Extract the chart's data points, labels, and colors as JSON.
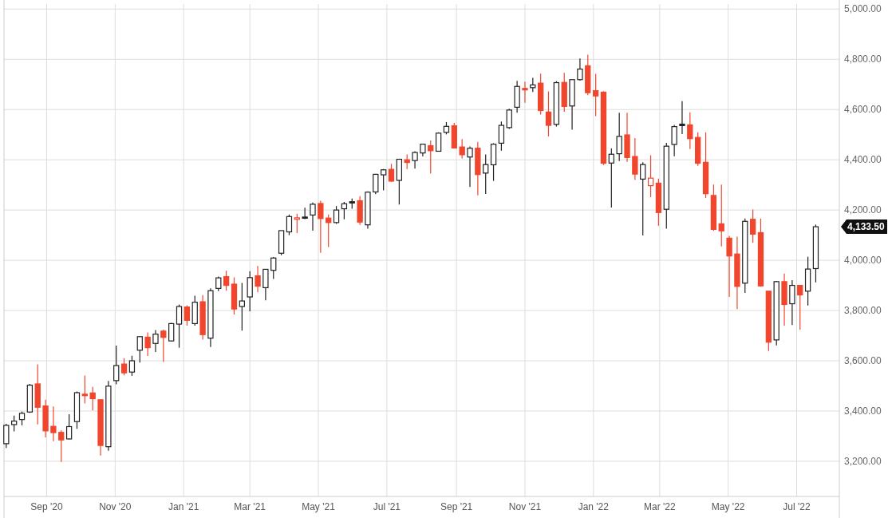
{
  "chart_data": {
    "type": "candlestick",
    "x": [
      "2020-07-27",
      "2020-08-03",
      "2020-08-10",
      "2020-08-17",
      "2020-08-24",
      "2020-08-31",
      "2020-09-07",
      "2020-09-14",
      "2020-09-21",
      "2020-09-28",
      "2020-10-05",
      "2020-10-12",
      "2020-10-19",
      "2020-10-26",
      "2020-11-02",
      "2020-11-09",
      "2020-11-16",
      "2020-11-23",
      "2020-11-30",
      "2020-12-07",
      "2020-12-14",
      "2020-12-21",
      "2020-12-28",
      "2021-01-04",
      "2021-01-11",
      "2021-01-18",
      "2021-01-25",
      "2021-02-01",
      "2021-02-08",
      "2021-02-15",
      "2021-02-22",
      "2021-03-01",
      "2021-03-08",
      "2021-03-15",
      "2021-03-22",
      "2021-03-29",
      "2021-04-05",
      "2021-04-12",
      "2021-04-19",
      "2021-04-26",
      "2021-05-03",
      "2021-05-10",
      "2021-05-17",
      "2021-05-24",
      "2021-05-31",
      "2021-06-07",
      "2021-06-14",
      "2021-06-21",
      "2021-06-28",
      "2021-07-05",
      "2021-07-12",
      "2021-07-19",
      "2021-07-26",
      "2021-08-02",
      "2021-08-09",
      "2021-08-16",
      "2021-08-23",
      "2021-08-30",
      "2021-09-06",
      "2021-09-13",
      "2021-09-20",
      "2021-09-27",
      "2021-10-04",
      "2021-10-11",
      "2021-10-18",
      "2021-10-25",
      "2021-11-01",
      "2021-11-08",
      "2021-11-15",
      "2021-11-22",
      "2021-11-29",
      "2021-12-06",
      "2021-12-13",
      "2021-12-20",
      "2021-12-27",
      "2022-01-03",
      "2022-01-10",
      "2022-01-17",
      "2022-01-24",
      "2022-01-31",
      "2022-02-07",
      "2022-02-14",
      "2022-02-21",
      "2022-02-28",
      "2022-03-07",
      "2022-03-14",
      "2022-03-21",
      "2022-03-28",
      "2022-04-04",
      "2022-04-11",
      "2022-04-18",
      "2022-04-25",
      "2022-05-02",
      "2022-05-09",
      "2022-05-16",
      "2022-05-23",
      "2022-05-30",
      "2022-06-06",
      "2022-06-13",
      "2022-06-20",
      "2022-06-27",
      "2022-07-04",
      "2022-07-11",
      "2022-07-18"
    ],
    "ohlc": [
      [
        3270,
        3349,
        3253,
        3343
      ],
      [
        3346,
        3382,
        3319,
        3360
      ],
      [
        3366,
        3398,
        3343,
        3391
      ],
      [
        3396,
        3508,
        3393,
        3503
      ],
      [
        3508,
        3586,
        3347,
        3415
      ],
      [
        3420,
        3445,
        3295,
        3321
      ],
      [
        3339,
        3418,
        3280,
        3314
      ],
      [
        3315,
        3323,
        3197,
        3285
      ],
      [
        3289,
        3387,
        3287,
        3338
      ],
      [
        3358,
        3478,
        3329,
        3473
      ],
      [
        3467,
        3541,
        3430,
        3461
      ],
      [
        3472,
        3496,
        3402,
        3449
      ],
      [
        3445,
        3445,
        3223,
        3263
      ],
      [
        3258,
        3520,
        3242,
        3499
      ],
      [
        3521,
        3660,
        3506,
        3581
      ],
      [
        3587,
        3610,
        3542,
        3552
      ],
      [
        3555,
        3620,
        3540,
        3600
      ],
      [
        3642,
        3696,
        3593,
        3696
      ],
      [
        3694,
        3713,
        3619,
        3652
      ],
      [
        3669,
        3722,
        3635,
        3706
      ],
      [
        3718,
        3724,
        3595,
        3693
      ],
      [
        3679,
        3751,
        3676,
        3748
      ],
      [
        3746,
        3824,
        3652,
        3816
      ],
      [
        3814,
        3821,
        3740,
        3761
      ],
      [
        3748,
        3859,
        3740,
        3833
      ],
      [
        3835,
        3861,
        3684,
        3704
      ],
      [
        3690,
        3888,
        3655,
        3879
      ],
      [
        3888,
        3935,
        3877,
        3930
      ],
      [
        3935,
        3958,
        3879,
        3900
      ],
      [
        3905,
        3932,
        3784,
        3806
      ],
      [
        3816,
        3910,
        3720,
        3838
      ],
      [
        3854,
        3957,
        3797,
        3931
      ],
      [
        3938,
        3977,
        3873,
        3897
      ],
      [
        3891,
        3964,
        3841,
        3964
      ],
      [
        3960,
        4013,
        3926,
        4009
      ],
      [
        4028,
        4118,
        4020,
        4118
      ],
      [
        4113,
        4182,
        4100,
        4174
      ],
      [
        4163,
        4185,
        4108,
        4169
      ],
      [
        4172,
        4209,
        4164,
        4168
      ],
      [
        4180,
        4230,
        4118,
        4223
      ],
      [
        4226,
        4237,
        4030,
        4166
      ],
      [
        4168,
        4182,
        4053,
        4150
      ],
      [
        4150,
        4216,
        4145,
        4200
      ],
      [
        4205,
        4232,
        4163,
        4225
      ],
      [
        4233,
        4246,
        4205,
        4228
      ],
      [
        4237,
        4255,
        4141,
        4152
      ],
      [
        4141,
        4274,
        4126,
        4271
      ],
      [
        4272,
        4344,
        4263,
        4342
      ],
      [
        4340,
        4363,
        4278,
        4360
      ],
      [
        4362,
        4384,
        4312,
        4315
      ],
      [
        4318,
        4402,
        4222,
        4402
      ],
      [
        4400,
        4421,
        4363,
        4389
      ],
      [
        4397,
        4434,
        4365,
        4429
      ],
      [
        4427,
        4464,
        4413,
        4462
      ],
      [
        4456,
        4477,
        4346,
        4436
      ],
      [
        4434,
        4509,
        4432,
        4506
      ],
      [
        4509,
        4550,
        4501,
        4533
      ],
      [
        4535,
        4547,
        4447,
        4447
      ],
      [
        4451,
        4482,
        4405,
        4420
      ],
      [
        4411,
        4453,
        4292,
        4446
      ],
      [
        4446,
        4471,
        4258,
        4341
      ],
      [
        4347,
        4421,
        4264,
        4381
      ],
      [
        4380,
        4466,
        4316,
        4462
      ],
      [
        4466,
        4552,
        4436,
        4537
      ],
      [
        4528,
        4603,
        4523,
        4598
      ],
      [
        4609,
        4714,
        4587,
        4692
      ],
      [
        4684,
        4710,
        4627,
        4678
      ],
      [
        4687,
        4726,
        4670,
        4698
      ],
      [
        4705,
        4743,
        4580,
        4596
      ],
      [
        4590,
        4672,
        4493,
        4537
      ],
      [
        4541,
        4713,
        4532,
        4707
      ],
      [
        4708,
        4746,
        4591,
        4612
      ],
      [
        4614,
        4719,
        4520,
        4719
      ],
      [
        4719,
        4803,
        4715,
        4761
      ],
      [
        4774,
        4818,
        4657,
        4667
      ],
      [
        4675,
        4742,
        4574,
        4654
      ],
      [
        4669,
        4673,
        4379,
        4386
      ],
      [
        4387,
        4445,
        4210,
        4422
      ],
      [
        4424,
        4587,
        4395,
        4493
      ],
      [
        4499,
        4587,
        4392,
        4409
      ],
      [
        4413,
        4486,
        4320,
        4343
      ],
      [
        4323,
        4390,
        4099,
        4381
      ],
      [
        4297,
        4418,
        4251,
        4327
      ],
      [
        4307,
        4325,
        4137,
        4190
      ],
      [
        4203,
        4467,
        4126,
        4454
      ],
      [
        4461,
        4539,
        4414,
        4532
      ],
      [
        4542,
        4633,
        4502,
        4536
      ],
      [
        4539,
        4589,
        4443,
        4484
      ],
      [
        4489,
        4509,
        4376,
        4386
      ],
      [
        4390,
        4509,
        4248,
        4265
      ],
      [
        4258,
        4301,
        4117,
        4123
      ],
      [
        4145,
        4301,
        4055,
        4117
      ],
      [
        4088,
        4097,
        3854,
        4017
      ],
      [
        4025,
        4094,
        3806,
        3896
      ],
      [
        3909,
        4166,
        3870,
        4155
      ],
      [
        4163,
        4202,
        4069,
        4104
      ],
      [
        4110,
        4166,
        3895,
        3898
      ],
      [
        3877,
        3877,
        3639,
        3674
      ],
      [
        3683,
        3918,
        3661,
        3915
      ],
      [
        3915,
        3947,
        3740,
        3824
      ],
      [
        3827,
        3921,
        3742,
        3900
      ],
      [
        3900,
        3900,
        3724,
        3862
      ],
      [
        3877,
        4014,
        3820,
        3965
      ],
      [
        3967,
        4142,
        3912,
        4133.5
      ]
    ],
    "colors": [
      "#222222",
      "#222222",
      "#222222",
      "#222222",
      "#f0462d",
      "#f0462d",
      "#f0462d",
      "#f0462d",
      "#222222",
      "#222222",
      "#f0462d",
      "#f0462d",
      "#f0462d",
      "#222222",
      "#222222",
      "#f0462d",
      "#222222",
      "#222222",
      "#f0462d",
      "#222222",
      "#f0462d",
      "#222222",
      "#222222",
      "#f0462d",
      "#222222",
      "#f0462d",
      "#222222",
      "#222222",
      "#f0462d",
      "#f0462d",
      "#222222",
      "#222222",
      "#f0462d",
      "#222222",
      "#222222",
      "#222222",
      "#222222",
      "#f0462d",
      "#222222",
      "#222222",
      "#f0462d",
      "#f0462d",
      "#222222",
      "#222222",
      "#222222",
      "#f0462d",
      "#222222",
      "#222222",
      "#222222",
      "#f0462d",
      "#222222",
      "#f0462d",
      "#222222",
      "#222222",
      "#f0462d",
      "#222222",
      "#222222",
      "#f0462d",
      "#f0462d",
      "#222222",
      "#f0462d",
      "#222222",
      "#222222",
      "#222222",
      "#222222",
      "#222222",
      "#f0462d",
      "#222222",
      "#f0462d",
      "#f0462d",
      "#222222",
      "#f0462d",
      "#222222",
      "#222222",
      "#f0462d",
      "#f0462d",
      "#f0462d",
      "#222222",
      "#222222",
      "#f0462d",
      "#f0462d",
      "#222222",
      "#f0462d",
      "#f0462d",
      "#222222",
      "#222222",
      "#222222",
      "#f0462d",
      "#f0462d",
      "#f0462d",
      "#f0462d",
      "#f0462d",
      "#f0462d",
      "#f0462d",
      "#222222",
      "#f0462d",
      "#f0462d",
      "#f0462d",
      "#222222",
      "#f0462d",
      "#222222",
      "#f0462d",
      "#222222",
      "#222222"
    ],
    "xlim": [
      "2020-07-25",
      "2022-08-08"
    ],
    "xticks": [
      {
        "value": "2020-09-01",
        "label": "Sep '20"
      },
      {
        "value": "2020-11-01",
        "label": "Nov '20"
      },
      {
        "value": "2021-01-01",
        "label": "Jan '21"
      },
      {
        "value": "2021-03-01",
        "label": "Mar '21"
      },
      {
        "value": "2021-05-01",
        "label": "May '21"
      },
      {
        "value": "2021-07-01",
        "label": "Jul '21"
      },
      {
        "value": "2021-09-01",
        "label": "Sep '21"
      },
      {
        "value": "2021-11-01",
        "label": "Nov '21"
      },
      {
        "value": "2022-01-01",
        "label": "Jan '22"
      },
      {
        "value": "2022-03-01",
        "label": "Mar '22"
      },
      {
        "value": "2022-05-01",
        "label": "May '22"
      },
      {
        "value": "2022-07-01",
        "label": "Jul '22"
      }
    ],
    "ylim": [
      3060,
      5020
    ],
    "yticks": [
      {
        "value": 3200,
        "label": "3,200.00"
      },
      {
        "value": 3400,
        "label": "3,400.00"
      },
      {
        "value": 3600,
        "label": "3,600.00"
      },
      {
        "value": 3800,
        "label": "3,800.00"
      },
      {
        "value": 4000,
        "label": "4,000.00"
      },
      {
        "value": 4200,
        "label": "4,200.00"
      },
      {
        "value": 4400,
        "label": "4,400.00"
      },
      {
        "value": 4600,
        "label": "4,600.00"
      },
      {
        "value": 4800,
        "label": "4,800.00"
      },
      {
        "value": 5000,
        "label": "5,000.00"
      }
    ],
    "grid": true,
    "annotations": [
      "4,133.50"
    ]
  }
}
